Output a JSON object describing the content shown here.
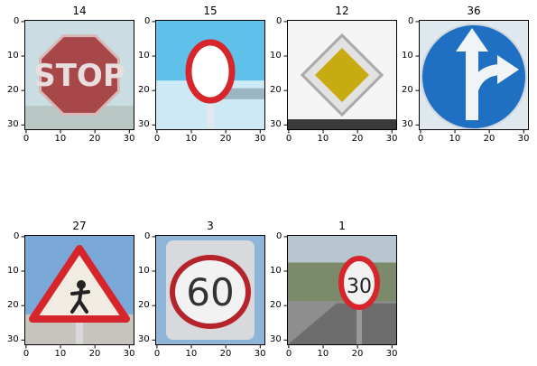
{
  "panels": [
    {
      "title": "14",
      "sign": "stop",
      "sign_text": "STOP",
      "bg": "#c9dde3"
    },
    {
      "title": "15",
      "sign": "no-vehicles",
      "bg": "#5fc0ea"
    },
    {
      "title": "12",
      "sign": "priority-road",
      "bg": "#f4f4f4"
    },
    {
      "title": "36",
      "sign": "straight-or-right",
      "bg": "#dfe8ef"
    },
    {
      "title": "27",
      "sign": "pedestrians",
      "bg": "#7aa9d8"
    },
    {
      "title": "3",
      "sign": "speed-limit",
      "sign_text": "60",
      "bg": "#8fb6d9"
    },
    {
      "title": "1",
      "sign": "speed-limit",
      "sign_text": "30",
      "bg": "#8e8e8e"
    }
  ],
  "xticks": [
    "0",
    "10",
    "20",
    "30"
  ],
  "yticks": [
    "0",
    "10",
    "20",
    "30"
  ],
  "colors": {
    "red": "#d7262b",
    "stop_red": "#a8474a",
    "blue": "#1f6fc2",
    "yellow": "#c8ab10"
  }
}
